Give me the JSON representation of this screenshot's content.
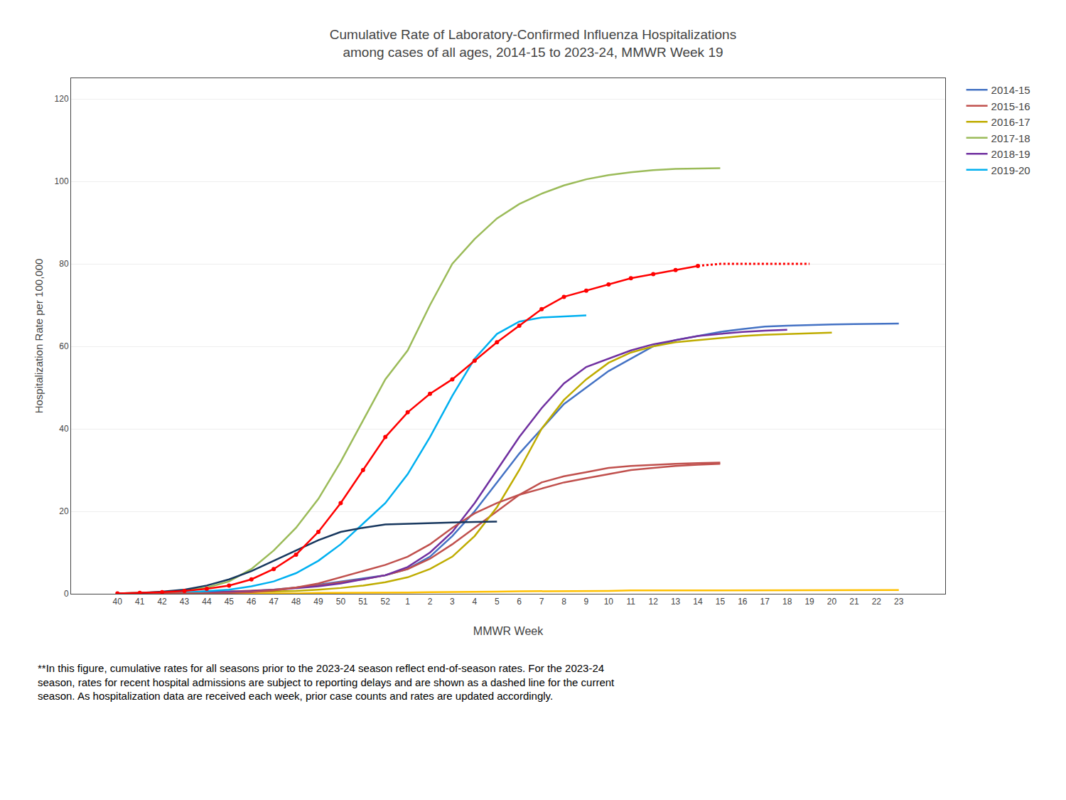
{
  "chart_data": {
    "type": "line",
    "title": "Cumulative Rate of Laboratory-Confirmed Influenza Hospitalizations",
    "subtitle": "among cases of all ages, 2014-15 to 2023-24, MMWR Week 19",
    "x_label": "MMWR Week",
    "y_label": "Hospitalization Rate per 100,000",
    "annotations": [
      "**In this figure, cumulative rates for all seasons prior to the 2023-24 season reflect end-of-season rates. For the 2023-24\nseason, rates for recent hospital admissions are subject to reporting delays and are shown as a dashed line for the current\nseason. As hospitalization data are received each week, prior case counts and rates are updated accordingly."
    ],
    "categories": [
      "40",
      "41",
      "42",
      "43",
      "44",
      "45",
      "46",
      "47",
      "48",
      "49",
      "50",
      "51",
      "52",
      "1",
      "2",
      "3",
      "4",
      "5",
      "6",
      "7",
      "8",
      "9",
      "10",
      "11",
      "12",
      "13",
      "14",
      "15",
      "16",
      "17",
      "18",
      "19",
      "20",
      "21",
      "22",
      "23"
    ],
    "ylim": [
      0,
      125
    ],
    "yticks": [
      0,
      20,
      40,
      60,
      80,
      100,
      120
    ],
    "grid": true,
    "legend": "right",
    "series": [
      {
        "name": "2014-15",
        "color": "#4472C4",
        "line_style": "solid",
        "values": [
          0.1,
          0.1,
          0.2,
          0.3,
          0.4,
          0.5,
          0.7,
          1.0,
          1.5,
          2.2,
          3.0,
          3.8,
          4.5,
          6.0,
          9.0,
          14.0,
          20.0,
          27.0,
          34.0,
          40.0,
          46.0,
          50.0,
          54.0,
          57.0,
          60.0,
          61.5,
          62.5,
          63.5,
          64.2,
          64.8,
          65.0,
          65.2,
          65.3,
          65.4,
          65.5,
          65.5
        ]
      },
      {
        "name": "2015-16",
        "color": "#C0504D",
        "line_style": "solid",
        "values": [
          0.1,
          0.1,
          0.2,
          0.2,
          0.3,
          0.5,
          0.7,
          1.0,
          1.5,
          2.0,
          2.8,
          3.5,
          4.5,
          6.0,
          8.5,
          12.0,
          16.0,
          20.0,
          24.0,
          27.0,
          28.5,
          29.5,
          30.5,
          31.0,
          31.3,
          31.5,
          31.7,
          31.8,
          null,
          null,
          null,
          null,
          null,
          null,
          null,
          null
        ]
      },
      {
        "name": "2016-17",
        "color": "#BFAC00",
        "line_style": "solid",
        "values": [
          0.1,
          0.1,
          0.1,
          0.2,
          0.2,
          0.3,
          0.4,
          0.5,
          0.7,
          1.0,
          1.4,
          2.0,
          2.8,
          4.0,
          6.0,
          9.0,
          14.0,
          21.0,
          30.0,
          40.0,
          47.0,
          52.0,
          56.0,
          58.5,
          60.0,
          61.0,
          61.5,
          62.0,
          62.5,
          62.8,
          63.0,
          63.2,
          63.3,
          null,
          null,
          null
        ]
      },
      {
        "name": "2017-18",
        "color": "#9BBB59",
        "line_style": "solid",
        "values": [
          0.1,
          0.2,
          0.4,
          0.8,
          1.5,
          3.0,
          6.0,
          10.5,
          16.0,
          23.0,
          32.0,
          42.0,
          52.0,
          59.0,
          70.0,
          80.0,
          86.0,
          91.0,
          94.5,
          97.0,
          99.0,
          100.5,
          101.5,
          102.2,
          102.7,
          103.0,
          103.1,
          103.2,
          null,
          null,
          null,
          null,
          null,
          null,
          null,
          null
        ]
      },
      {
        "name": "2018-19",
        "color": "#7030A0",
        "line_style": "solid",
        "values": [
          0.1,
          0.1,
          0.2,
          0.2,
          0.3,
          0.4,
          0.6,
          0.9,
          1.3,
          1.8,
          2.5,
          3.5,
          4.5,
          6.5,
          10.0,
          15.0,
          22.0,
          30.0,
          38.0,
          45.0,
          51.0,
          55.0,
          57.0,
          59.0,
          60.5,
          61.5,
          62.5,
          63.0,
          63.5,
          63.8,
          64.0,
          null,
          null,
          null,
          null,
          null
        ]
      },
      {
        "name": "2019-20",
        "color": "#00B0F0",
        "line_style": "solid",
        "values": [
          0.1,
          0.1,
          0.2,
          0.3,
          0.6,
          1.0,
          1.8,
          3.0,
          5.0,
          8.0,
          12.0,
          17.0,
          22.0,
          29.0,
          38.0,
          48.0,
          57.0,
          63.0,
          66.0,
          67.0,
          67.3,
          67.5,
          null,
          null,
          null,
          null,
          null,
          null,
          null,
          null,
          null,
          null,
          null,
          null,
          null,
          null
        ]
      },
      {
        "color": "#FFC000",
        "line_style": "solid",
        "values": [
          0.0,
          0.0,
          0.0,
          0.0,
          0.1,
          0.1,
          0.1,
          0.1,
          0.1,
          0.2,
          0.2,
          0.2,
          0.3,
          0.3,
          0.4,
          0.4,
          0.5,
          0.5,
          0.6,
          0.6,
          0.7,
          0.7,
          0.7,
          0.8,
          0.8,
          0.8,
          0.9,
          0.9,
          0.9,
          0.9,
          0.9,
          0.9,
          0.9,
          0.9,
          0.9,
          0.9
        ]
      },
      {
        "color": "#C0504D",
        "line_style": "solid",
        "values": [
          0.0,
          0.0,
          0.0,
          0.1,
          0.1,
          0.2,
          0.4,
          0.8,
          1.5,
          2.5,
          4.0,
          5.5,
          7.0,
          9.0,
          12.0,
          16.0,
          19.5,
          22.0,
          24.0,
          25.5,
          27.0,
          28.0,
          29.0,
          30.0,
          30.5,
          31.0,
          31.3,
          31.5,
          null,
          null,
          null,
          null,
          null,
          null,
          null,
          null
        ]
      },
      {
        "color": "#17375E",
        "line_style": "solid",
        "values": [
          0.1,
          0.2,
          0.5,
          1.0,
          2.0,
          3.5,
          5.5,
          8.0,
          10.5,
          13.0,
          15.0,
          16.0,
          16.8,
          17.0,
          17.2,
          17.3,
          17.4,
          17.5,
          null,
          null,
          null,
          null,
          null,
          null,
          null,
          null,
          null,
          null,
          null,
          null,
          null,
          null,
          null,
          null,
          null,
          null
        ]
      },
      {
        "color": "#FF0000",
        "line_style": "solid",
        "marker": "circle",
        "values": [
          0.1,
          0.2,
          0.4,
          0.7,
          1.2,
          2.0,
          3.5,
          6.0,
          9.5,
          15.0,
          22.0,
          30.0,
          38.0,
          44.0,
          48.5,
          52.0,
          56.5,
          61.0,
          65.0,
          69.0,
          72.0,
          73.5,
          75.0,
          76.5,
          77.5,
          78.5,
          79.5,
          null,
          null,
          null,
          null,
          null,
          null,
          null,
          null,
          null
        ]
      },
      {
        "color": "#FF0000",
        "line_style": "dotted",
        "values": [
          null,
          null,
          null,
          null,
          null,
          null,
          null,
          null,
          null,
          null,
          null,
          null,
          null,
          null,
          null,
          null,
          null,
          null,
          null,
          null,
          null,
          null,
          null,
          null,
          null,
          null,
          79.5,
          80.0,
          80.0,
          80.0,
          80.0,
          80.0,
          null,
          null,
          null,
          null
        ]
      }
    ]
  }
}
